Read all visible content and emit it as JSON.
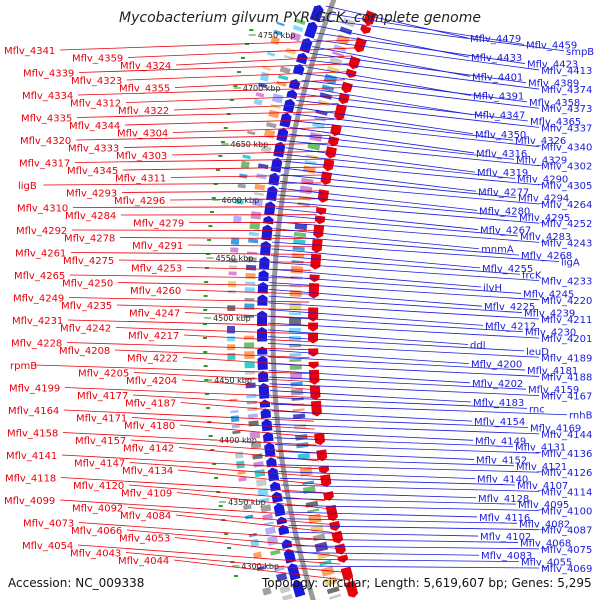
{
  "title": "Mycobacterium gilvum PYR-GCK, complete genome",
  "accession": "Accession: NC_009338",
  "summary": "Topology: circular; Length: 5,619,607 bp; Genes: 5,295",
  "colors": {
    "plus_strand": "#e8000b",
    "minus_strand": "#1a1adb",
    "backbone": "#9a9a9a",
    "tick": "#2a9a2a"
  },
  "scale_labels": [
    {
      "text": "4750 kbp",
      "slot": 0
    },
    {
      "text": "4700 kbp",
      "slot": 1
    },
    {
      "text": "4650 kbp",
      "slot": 2
    },
    {
      "text": "4600 kbp",
      "slot": 3
    },
    {
      "text": "4550 kbp",
      "slot": 4
    },
    {
      "text": "4500 kbp",
      "slot": 5
    },
    {
      "text": "4450 kbp",
      "slot": 6
    },
    {
      "text": "4400 kbp",
      "slot": 7
    },
    {
      "text": "4350 kbp",
      "slot": 8
    },
    {
      "text": "4300 kbp",
      "slot": 9
    }
  ],
  "left_labels": [
    "Mflv_4341",
    "Mflv_4359",
    "Mflv_4324",
    "Mflv_4339",
    "Mflv_4323",
    "Mflv_4355",
    "Mflv_4334",
    "Mflv_4312",
    "Mflv_4322",
    "Mflv_4335",
    "Mflv_4344",
    "Mflv_4304",
    "Mflv_4320",
    "Mflv_4333",
    "Mflv_4303",
    "Mflv_4317",
    "Mflv_4345",
    "Mflv_4311",
    "ligB",
    "Mflv_4293",
    "Mflv_4296",
    "Mflv_4310",
    "Mflv_4284",
    "Mflv_4279",
    "Mflv_4292",
    "Mflv_4278",
    "Mflv_4291",
    "Mflv_4261",
    "Mflv_4275",
    "Mflv_4253",
    "Mflv_4265",
    "Mflv_4250",
    "Mflv_4260",
    "Mflv_4249",
    "Mflv_4235",
    "Mflv_4247",
    "Mflv_4231",
    "Mflv_4242",
    "Mflv_4217",
    "Mflv_4228",
    "Mflv_4208",
    "Mflv_4222",
    "rpmB",
    "Mflv_4205",
    "Mflv_4204",
    "Mflv_4199",
    "Mflv_4177",
    "Mflv_4187",
    "Mflv_4164",
    "Mflv_4171",
    "Mflv_4180",
    "Mflv_4158",
    "Mflv_4157",
    "Mflv_4142",
    "Mflv_4141",
    "Mflv_4147",
    "Mflv_4134",
    "Mflv_4118",
    "Mflv_4120",
    "Mflv_4109",
    "Mflv_4099",
    "Mflv_4092",
    "Mflv_4084",
    "Mflv_4073",
    "Mflv_4066",
    "Mflv_4053",
    "Mflv_4054",
    "Mflv_4043",
    "Mflv_4044"
  ],
  "right_labels": [
    "Mflv_4479",
    "4750 kbp",
    "Mflv_4459",
    "smpB",
    "Mflv_4433",
    "Mflv_4423",
    "Mflv_4413",
    "Mflv_4401",
    "Mflv_4389",
    "Mflv_4374",
    "Mflv_4391",
    "Mflv_4358",
    "Mflv_4373",
    "Mflv_4347",
    "Mflv_4365",
    "Mflv_4337",
    "Mflv_4350",
    "Mflv_4326",
    "Mflv_4340",
    "Mflv_4316",
    "Mflv_4329",
    "Mflv_4302",
    "Mflv_4319",
    "Mflv_4290",
    "Mflv_4305",
    "Mflv_4277",
    "Mflv_4294",
    "Mflv_4264",
    "Mflv_4280",
    "Mflv_4295",
    "Mflv_4252",
    "Mflv_4267",
    "Mflv_4283",
    "Mflv_4243",
    "mnmA",
    "Mflv_4268",
    "ligA",
    "Mflv_4255",
    "frcK",
    "Mflv_4233",
    "ilvH",
    "Mflv_4245",
    "Mflv_4220",
    "Mflv_4225",
    "Mflv_4239",
    "Mflv_4211",
    "Mflv_4212",
    "Mflv_4230",
    "Mflv_4201",
    "ddl",
    "leuD",
    "Mflv_4189",
    "Mflv_4200",
    "Mflv_4181",
    "Mflv_4188",
    "Mflv_4202",
    "Mflv_4159",
    "Mflv_4167",
    "Mflv_4183",
    "rnc",
    "rnhB",
    "Mflv_4154",
    "Mflv_4169",
    "Mflv_4144",
    "Mflv_4149",
    "Mflv_4131",
    "Mflv_4136",
    "Mflv_4152",
    "Mflv_4121",
    "Mflv_4126",
    "Mflv_4140",
    "Mflv_4107",
    "Mflv_4114",
    "Mflv_4128",
    "Mflv_4095",
    "Mflv_4100",
    "Mflv_4116",
    "Mflv_4082",
    "Mflv_4087",
    "Mflv_4102",
    "Mflv_4068",
    "Mflv_4075",
    "Mflv_4083",
    "Mflv_4055",
    "Mflv_4069"
  ]
}
